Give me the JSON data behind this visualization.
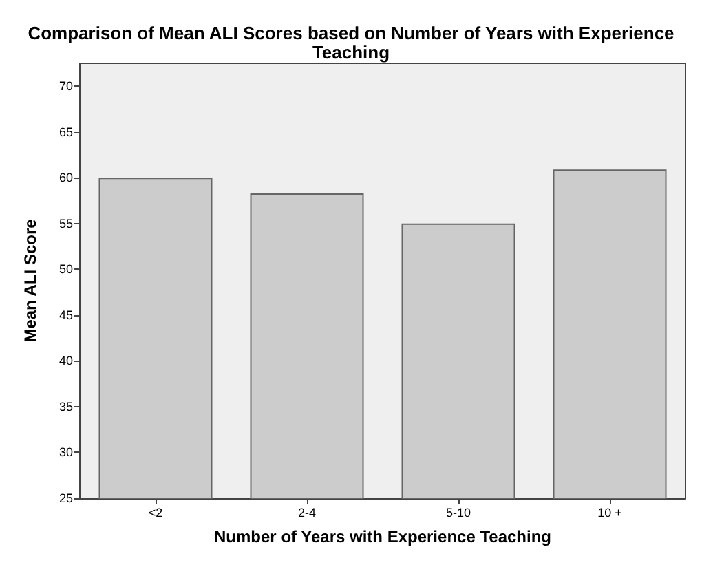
{
  "chart_data": {
    "type": "bar",
    "title": "Comparison of Mean ALI Scores based on Number of Years with Experience\nTeaching",
    "xlabel": "Number of Years with Experience Teaching",
    "ylabel": "Mean ALI Score",
    "categories": [
      "<2",
      "2-4",
      "5-10",
      "10 +"
    ],
    "values": [
      60.0,
      58.3,
      55.0,
      60.9
    ],
    "color": "#cccccc",
    "ylim": [
      25,
      72.5
    ],
    "yticks": [
      25,
      30,
      35,
      40,
      45,
      50,
      55,
      60,
      65,
      70
    ],
    "grid": false
  }
}
